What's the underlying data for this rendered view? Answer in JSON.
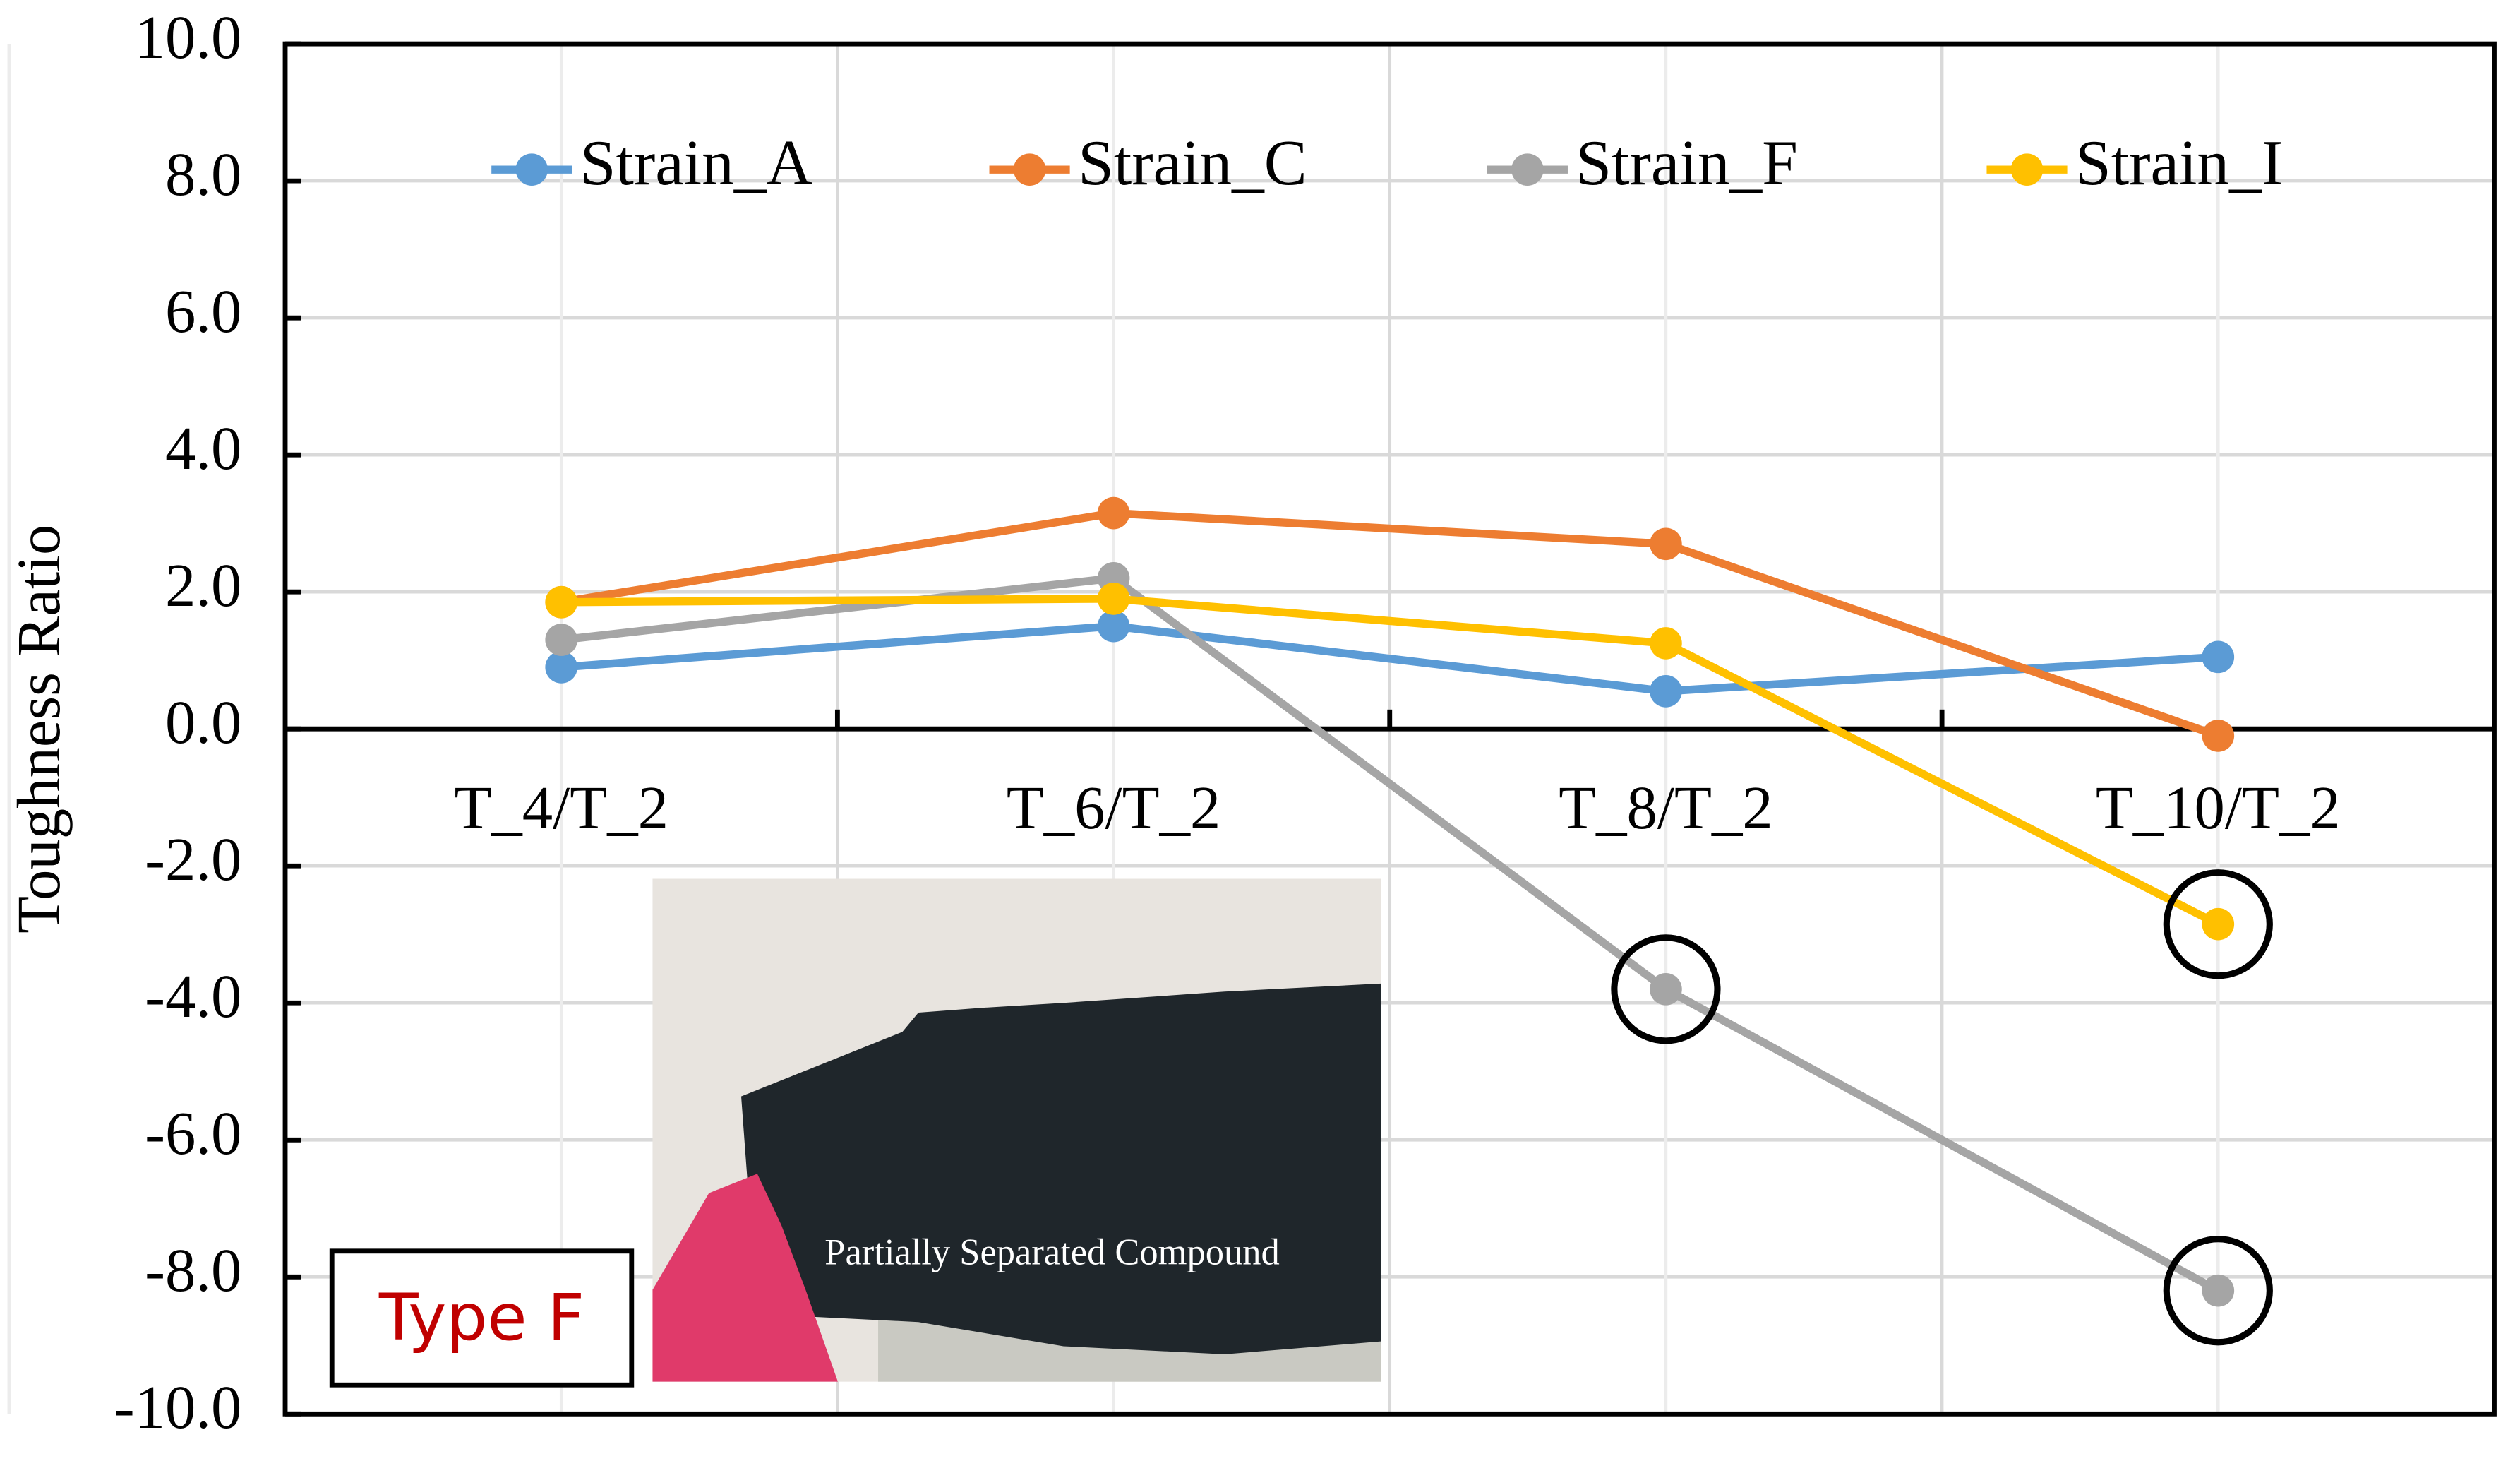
{
  "chart_data": {
    "type": "line",
    "y_label": "Toughness Ratio",
    "categories": [
      "T_4/T_2",
      "T_6/T_2",
      "T_8/T_2",
      "T_10/T_2"
    ],
    "series": [
      {
        "name": "Strain_A",
        "color": "#5b9bd5",
        "values": [
          0.9,
          1.5,
          0.55,
          1.05
        ]
      },
      {
        "name": "Strain_C",
        "color": "#ed7d31",
        "values": [
          1.85,
          3.15,
          2.7,
          -0.1
        ]
      },
      {
        "name": "Strain_F",
        "color": "#a5a5a5",
        "values": [
          1.3,
          2.2,
          -3.8,
          -8.2
        ]
      },
      {
        "name": "Strain_I",
        "color": "#ffc000",
        "values": [
          1.85,
          1.9,
          1.25,
          -2.85
        ]
      }
    ],
    "ylim": [
      -10,
      10
    ],
    "yticks": [
      {
        "value": -10,
        "label": "-10.0"
      },
      {
        "value": -8,
        "label": "-8.0"
      },
      {
        "value": -6,
        "label": "-6.0"
      },
      {
        "value": -4,
        "label": "-4.0"
      },
      {
        "value": -2,
        "label": "-2.0"
      },
      {
        "value": 0,
        "label": "0.0"
      },
      {
        "value": 2,
        "label": "2.0"
      },
      {
        "value": 4,
        "label": "4.0"
      },
      {
        "value": 6,
        "label": "6.0"
      },
      {
        "value": 8,
        "label": "8.0"
      },
      {
        "value": 10,
        "label": "10.0"
      }
    ],
    "grid": true,
    "legend": "top",
    "annotations": [
      "Type F",
      "Partially Separated Compound"
    ]
  }
}
